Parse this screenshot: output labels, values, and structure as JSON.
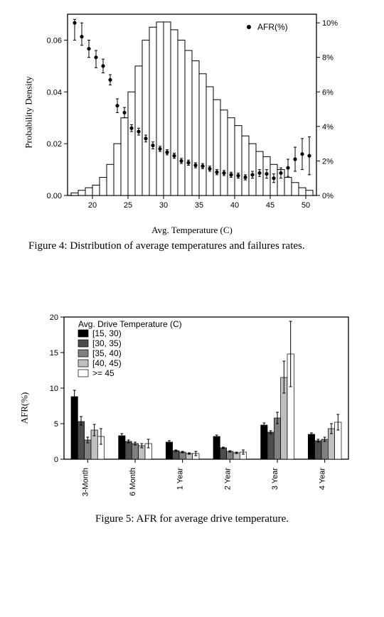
{
  "figure4": {
    "type": "dual-axis-histogram-with-points",
    "caption": "Figure 4: Distribution of average temperatures and failures rates.",
    "x_label": "Avg. Temperature (C)",
    "y_left_label": "Probability Density",
    "y_right_label_tics": [
      "0%",
      "2%",
      "4%",
      "6%",
      "8%",
      "10%"
    ],
    "legend": {
      "text": "AFR(%)",
      "marker": "dot"
    },
    "x_ticks": [
      20,
      25,
      30,
      35,
      40,
      45,
      50
    ],
    "x_range": [
      16.5,
      51.5
    ],
    "y_left_ticks": [
      0.0,
      0.02,
      0.04,
      0.06
    ],
    "y_left_range": [
      0,
      0.07
    ],
    "y_right_range": [
      0,
      10.5
    ],
    "histogram": {
      "bin_start": 17,
      "bin_width": 1,
      "heights": [
        0.001,
        0.002,
        0.003,
        0.004,
        0.007,
        0.012,
        0.02,
        0.03,
        0.04,
        0.05,
        0.06,
        0.065,
        0.067,
        0.067,
        0.064,
        0.06,
        0.056,
        0.052,
        0.047,
        0.042,
        0.037,
        0.033,
        0.03,
        0.027,
        0.023,
        0.02,
        0.017,
        0.015,
        0.012,
        0.01,
        0.007,
        0.005,
        0.003,
        0.002
      ]
    },
    "afr_points": [
      {
        "x": 17.5,
        "y": 10.0,
        "lo": 9.0,
        "hi": 10.2
      },
      {
        "x": 18.5,
        "y": 9.2,
        "lo": 8.7,
        "hi": 10.0
      },
      {
        "x": 19.5,
        "y": 8.5,
        "lo": 8.0,
        "hi": 9.0
      },
      {
        "x": 20.5,
        "y": 8.0,
        "lo": 7.4,
        "hi": 8.4
      },
      {
        "x": 21.5,
        "y": 7.5,
        "lo": 7.1,
        "hi": 7.9
      },
      {
        "x": 22.5,
        "y": 6.7,
        "lo": 6.4,
        "hi": 7.0
      },
      {
        "x": 23.5,
        "y": 5.2,
        "lo": 4.8,
        "hi": 5.6
      },
      {
        "x": 24.5,
        "y": 4.8,
        "lo": 4.5,
        "hi": 5.1
      },
      {
        "x": 25.5,
        "y": 3.9,
        "lo": 3.7,
        "hi": 4.1
      },
      {
        "x": 26.5,
        "y": 3.7,
        "lo": 3.5,
        "hi": 3.9
      },
      {
        "x": 27.5,
        "y": 3.3,
        "lo": 3.1,
        "hi": 3.5
      },
      {
        "x": 28.5,
        "y": 2.9,
        "lo": 2.7,
        "hi": 3.1
      },
      {
        "x": 29.5,
        "y": 2.7,
        "lo": 2.55,
        "hi": 2.85
      },
      {
        "x": 30.5,
        "y": 2.5,
        "lo": 2.35,
        "hi": 2.65
      },
      {
        "x": 31.5,
        "y": 2.3,
        "lo": 2.15,
        "hi": 2.45
      },
      {
        "x": 32.5,
        "y": 2.0,
        "lo": 1.85,
        "hi": 2.15
      },
      {
        "x": 33.5,
        "y": 1.9,
        "lo": 1.75,
        "hi": 2.05
      },
      {
        "x": 34.5,
        "y": 1.75,
        "lo": 1.6,
        "hi": 1.9
      },
      {
        "x": 35.5,
        "y": 1.7,
        "lo": 1.55,
        "hi": 1.85
      },
      {
        "x": 36.5,
        "y": 1.55,
        "lo": 1.4,
        "hi": 1.7
      },
      {
        "x": 37.5,
        "y": 1.35,
        "lo": 1.2,
        "hi": 1.5
      },
      {
        "x": 38.5,
        "y": 1.3,
        "lo": 1.15,
        "hi": 1.45
      },
      {
        "x": 39.5,
        "y": 1.2,
        "lo": 1.05,
        "hi": 1.35
      },
      {
        "x": 40.5,
        "y": 1.15,
        "lo": 1.0,
        "hi": 1.3
      },
      {
        "x": 41.5,
        "y": 1.05,
        "lo": 0.9,
        "hi": 1.2
      },
      {
        "x": 42.5,
        "y": 1.2,
        "lo": 1.0,
        "hi": 1.4
      },
      {
        "x": 43.5,
        "y": 1.3,
        "lo": 1.1,
        "hi": 1.5
      },
      {
        "x": 44.5,
        "y": 1.25,
        "lo": 1.0,
        "hi": 1.5
      },
      {
        "x": 45.5,
        "y": 1.0,
        "lo": 0.75,
        "hi": 1.25
      },
      {
        "x": 46.5,
        "y": 1.3,
        "lo": 1.0,
        "hi": 1.6
      },
      {
        "x": 47.5,
        "y": 1.6,
        "lo": 1.1,
        "hi": 2.1
      },
      {
        "x": 48.5,
        "y": 2.1,
        "lo": 1.4,
        "hi": 2.8
      },
      {
        "x": 49.5,
        "y": 2.4,
        "lo": 1.5,
        "hi": 3.3
      },
      {
        "x": 50.5,
        "y": 2.3,
        "lo": 1.2,
        "hi": 3.4
      }
    ],
    "colors": {
      "bar_fill": "#ffffff",
      "bar_stroke": "#000000",
      "point": "#000000",
      "axis": "#000000",
      "bg": "#ffffff"
    }
  },
  "figure5": {
    "type": "grouped-bar-with-error",
    "caption": "Figure 5: AFR for average drive temperature.",
    "y_label": "AFR(%)",
    "y_ticks": [
      0,
      5,
      10,
      15,
      20
    ],
    "y_range": [
      0,
      20
    ],
    "categories": [
      "3-Month",
      "6 Month",
      "1 Year",
      "2 Year",
      "3 Year",
      "4 Year"
    ],
    "legend_title": "Avg. Drive Temperature (C)",
    "series": [
      {
        "label": "[15, 30)",
        "fill": "#000000"
      },
      {
        "label": "[30, 35)",
        "fill": "#4d4d4d"
      },
      {
        "label": "[35, 40)",
        "fill": "#808080"
      },
      {
        "label": "[40, 45)",
        "fill": "#bfbfbf"
      },
      {
        "label": ">= 45",
        "fill": "#ffffff"
      }
    ],
    "data": [
      [
        {
          "y": 8.8,
          "lo": 7.9,
          "hi": 9.7
        },
        {
          "y": 5.3,
          "lo": 4.8,
          "hi": 6.0
        },
        {
          "y": 2.7,
          "lo": 2.3,
          "hi": 3.1
        },
        {
          "y": 4.1,
          "lo": 3.3,
          "hi": 4.9
        },
        {
          "y": 3.2,
          "lo": 2.1,
          "hi": 4.3
        }
      ],
      [
        {
          "y": 3.3,
          "lo": 3.0,
          "hi": 3.6
        },
        {
          "y": 2.5,
          "lo": 2.3,
          "hi": 2.7
        },
        {
          "y": 2.2,
          "lo": 2.0,
          "hi": 2.4
        },
        {
          "y": 1.9,
          "lo": 1.6,
          "hi": 2.2
        },
        {
          "y": 2.2,
          "lo": 1.6,
          "hi": 2.8
        }
      ],
      [
        {
          "y": 2.4,
          "lo": 2.2,
          "hi": 2.6
        },
        {
          "y": 1.2,
          "lo": 1.1,
          "hi": 1.3
        },
        {
          "y": 1.0,
          "lo": 0.9,
          "hi": 1.1
        },
        {
          "y": 0.8,
          "lo": 0.7,
          "hi": 0.9
        },
        {
          "y": 0.8,
          "lo": 0.5,
          "hi": 1.1
        }
      ],
      [
        {
          "y": 3.2,
          "lo": 3.0,
          "hi": 3.4
        },
        {
          "y": 1.6,
          "lo": 1.5,
          "hi": 1.7
        },
        {
          "y": 1.1,
          "lo": 1.0,
          "hi": 1.2
        },
        {
          "y": 0.9,
          "lo": 0.8,
          "hi": 1.0
        },
        {
          "y": 1.0,
          "lo": 0.7,
          "hi": 1.3
        }
      ],
      [
        {
          "y": 4.8,
          "lo": 4.5,
          "hi": 5.1
        },
        {
          "y": 3.8,
          "lo": 3.6,
          "hi": 4.0
        },
        {
          "y": 5.8,
          "lo": 5.0,
          "hi": 6.6
        },
        {
          "y": 11.5,
          "lo": 9.3,
          "hi": 13.8
        },
        {
          "y": 14.8,
          "lo": 10.2,
          "hi": 19.4
        }
      ],
      [
        {
          "y": 3.5,
          "lo": 3.3,
          "hi": 3.7
        },
        {
          "y": 2.6,
          "lo": 2.4,
          "hi": 2.8
        },
        {
          "y": 2.8,
          "lo": 2.5,
          "hi": 3.1
        },
        {
          "y": 4.3,
          "lo": 3.6,
          "hi": 5.0
        },
        {
          "y": 5.2,
          "lo": 4.1,
          "hi": 6.3
        }
      ]
    ],
    "colors": {
      "axis": "#000000",
      "bg": "#ffffff",
      "stroke": "#000000"
    }
  }
}
